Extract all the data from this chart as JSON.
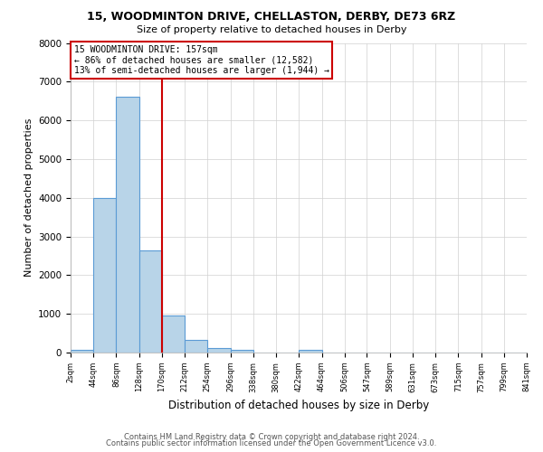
{
  "title": "15, WOODMINTON DRIVE, CHELLASTON, DERBY, DE73 6RZ",
  "subtitle": "Size of property relative to detached houses in Derby",
  "xlabel": "Distribution of detached houses by size in Derby",
  "ylabel": "Number of detached properties",
  "footer_line1": "Contains HM Land Registry data © Crown copyright and database right 2024.",
  "footer_line2": "Contains public sector information licensed under the Open Government Licence v3.0.",
  "bin_edges": [
    2,
    44,
    86,
    128,
    170,
    212,
    254,
    296,
    338,
    380,
    422,
    464,
    506,
    547,
    589,
    631,
    673,
    715,
    757,
    799,
    841
  ],
  "bin_counts": [
    60,
    4000,
    6600,
    2650,
    960,
    330,
    120,
    60,
    0,
    0,
    60,
    0,
    0,
    0,
    0,
    0,
    0,
    0,
    0,
    0
  ],
  "bar_color": "#b8d4e8",
  "bar_edge_color": "#5b9bd5",
  "vline_x": 170,
  "vline_color": "#cc0000",
  "annotation_line1": "15 WOODMINTON DRIVE: 157sqm",
  "annotation_line2": "← 86% of detached houses are smaller (12,582)",
  "annotation_line3": "13% of semi-detached houses are larger (1,944) →",
  "annotation_box_color": "#cc0000",
  "ylim": [
    0,
    8000
  ],
  "yticks": [
    0,
    1000,
    2000,
    3000,
    4000,
    5000,
    6000,
    7000,
    8000
  ],
  "tick_labels": [
    "2sqm",
    "44sqm",
    "86sqm",
    "128sqm",
    "170sqm",
    "212sqm",
    "254sqm",
    "296sqm",
    "338sqm",
    "380sqm",
    "422sqm",
    "464sqm",
    "506sqm",
    "547sqm",
    "589sqm",
    "631sqm",
    "673sqm",
    "715sqm",
    "757sqm",
    "799sqm",
    "841sqm"
  ],
  "background_color": "#ffffff",
  "grid_color": "#d0d0d0"
}
